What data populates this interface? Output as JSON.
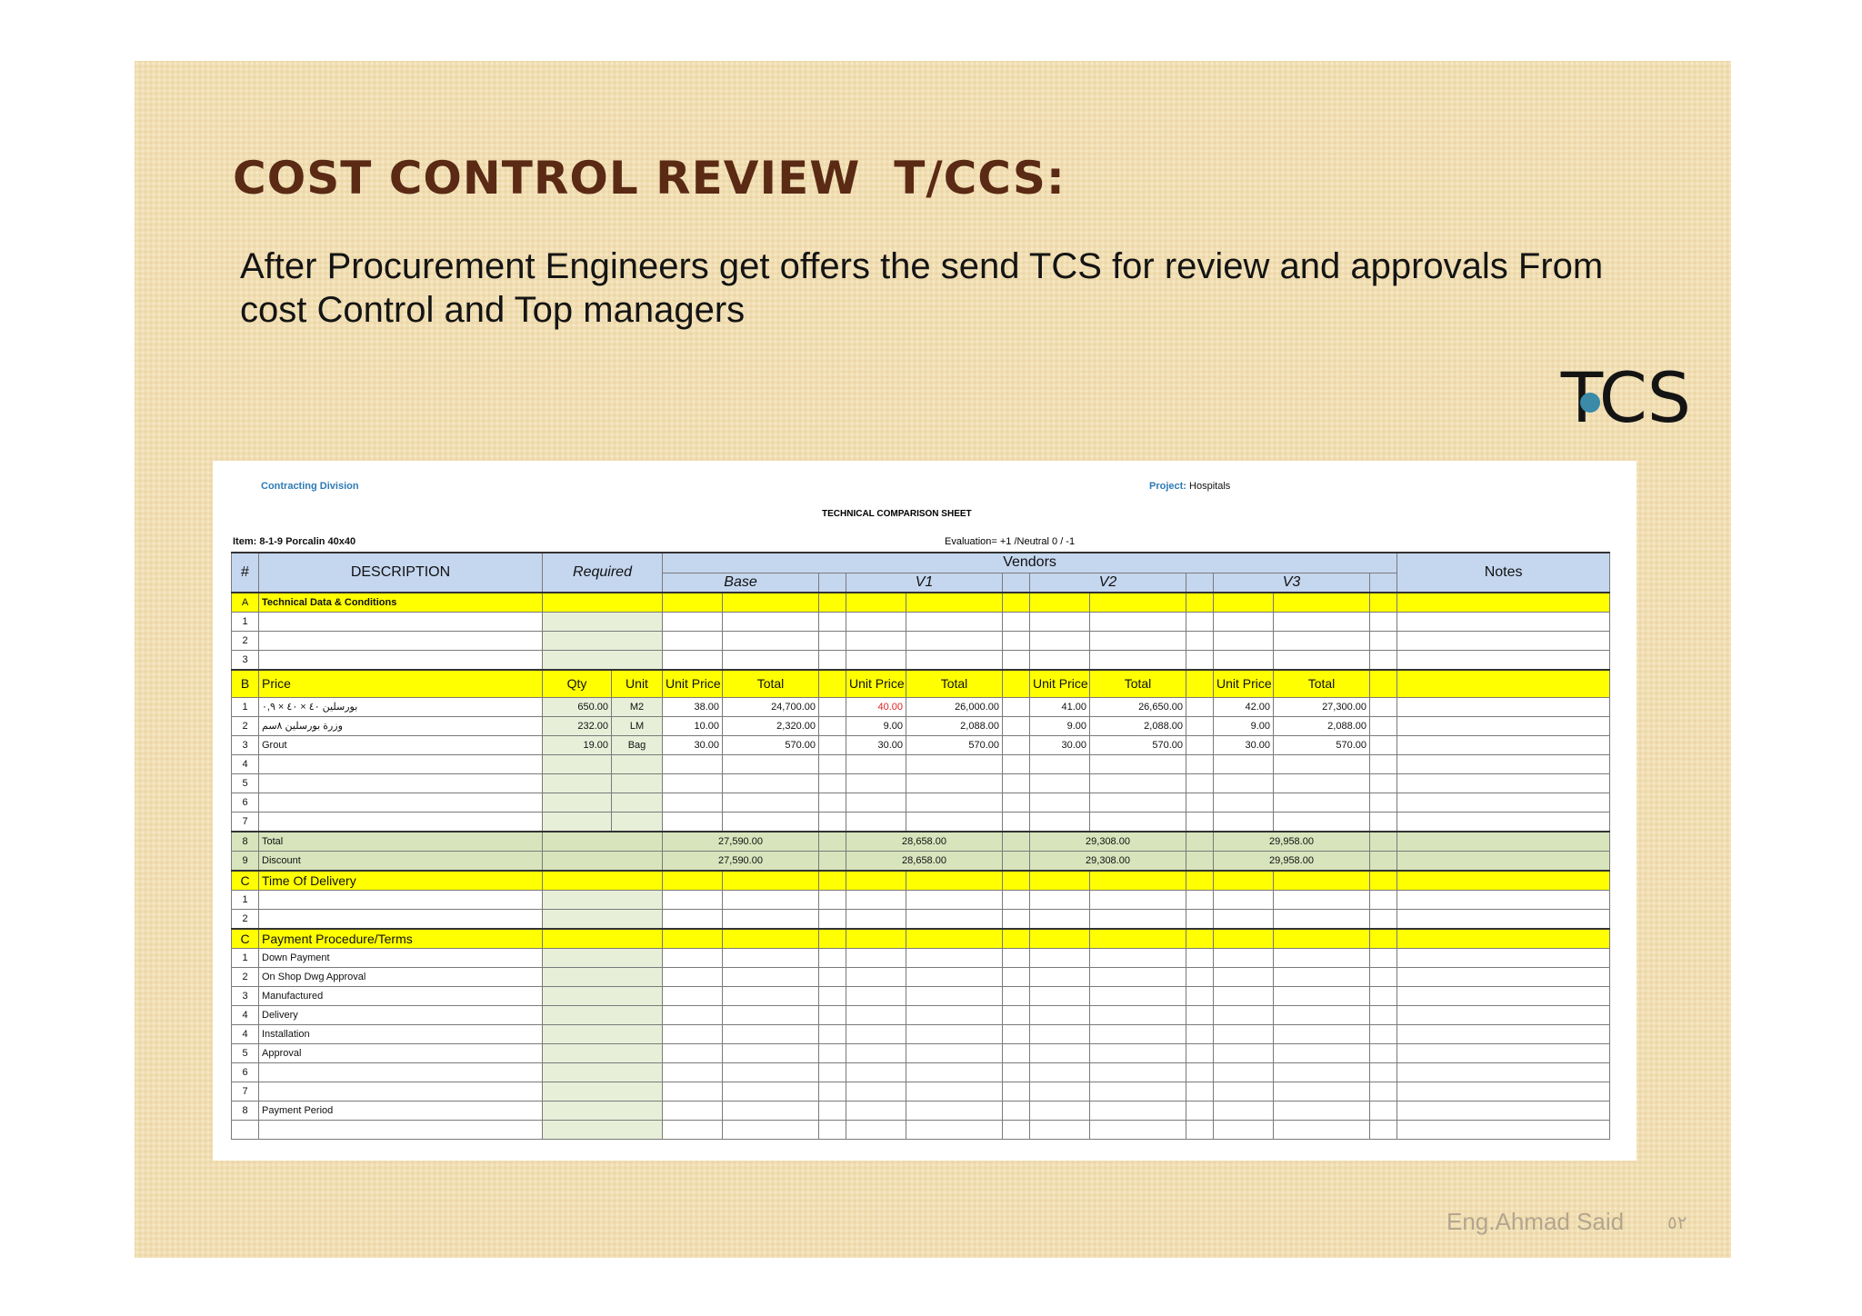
{
  "slide": {
    "title": "COST CONTROL REVIEW  T/CCS:",
    "subtitle": "After Procurement Engineers get offers the send TCS for review and approvals From cost  Control and Top managers",
    "bullet_label": "TCS"
  },
  "sheet": {
    "division_label": "Contracting Division",
    "project_label": "Project:",
    "project_value": "Hospitals",
    "sheet_title": "TECHNICAL COMPARISON SHEET",
    "item_label": "Item:",
    "item_value": "8-1-9 Porcalin 40x40",
    "evaluation": "Evaluation= +1 /Neutral 0 / -1",
    "headers": {
      "num": "#",
      "description": "DESCRIPTION",
      "required": "Required",
      "vendors": "Vendors",
      "notes": "Notes",
      "base": "Base",
      "v1": "V1",
      "v2": "V2",
      "v3": "V3"
    },
    "section_a": {
      "letter": "A",
      "label": "Technical Data & Conditions",
      "rows": [
        "1",
        "2",
        "3"
      ]
    },
    "section_b": {
      "letter": "B",
      "label": "Price",
      "qty": "Qty",
      "unit": "Unit",
      "unit_price": "Unit Price",
      "total": "Total",
      "rows": [
        {
          "n": "1",
          "desc": "بورسلين ٤٠ × ٤٠ × ٠,٩",
          "qty": "650.00",
          "unit": "M2",
          "base_up": "38.00",
          "base_total": "24,700.00",
          "v1_up": "40.00",
          "v1_total": "26,000.00",
          "v2_up": "41.00",
          "v2_total": "26,650.00",
          "v3_up": "42.00",
          "v3_total": "27,300.00"
        },
        {
          "n": "2",
          "desc": "وزرة بورسلين ٨سم",
          "qty": "232.00",
          "unit": "LM",
          "base_up": "10.00",
          "base_total": "2,320.00",
          "v1_up": "9.00",
          "v1_total": "2,088.00",
          "v2_up": "9.00",
          "v2_total": "2,088.00",
          "v3_up": "9.00",
          "v3_total": "2,088.00"
        },
        {
          "n": "3",
          "desc": "Grout",
          "qty": "19.00",
          "unit": "Bag",
          "base_up": "30.00",
          "base_total": "570.00",
          "v1_up": "30.00",
          "v1_total": "570.00",
          "v2_up": "30.00",
          "v2_total": "570.00",
          "v3_up": "30.00",
          "v3_total": "570.00"
        },
        {
          "n": "4",
          "desc": "",
          "qty": "",
          "unit": "",
          "base_up": "",
          "base_total": "",
          "v1_up": "",
          "v1_total": "",
          "v2_up": "",
          "v2_total": "",
          "v3_up": "",
          "v3_total": ""
        },
        {
          "n": "5",
          "desc": "",
          "qty": "",
          "unit": "",
          "base_up": "",
          "base_total": "",
          "v1_up": "",
          "v1_total": "",
          "v2_up": "",
          "v2_total": "",
          "v3_up": "",
          "v3_total": ""
        },
        {
          "n": "6",
          "desc": "",
          "qty": "",
          "unit": "",
          "base_up": "",
          "base_total": "",
          "v1_up": "",
          "v1_total": "",
          "v2_up": "",
          "v2_total": "",
          "v3_up": "",
          "v3_total": ""
        },
        {
          "n": "7",
          "desc": "",
          "qty": "",
          "unit": "",
          "base_up": "",
          "base_total": "",
          "v1_up": "",
          "v1_total": "",
          "v2_up": "",
          "v2_total": "",
          "v3_up": "",
          "v3_total": ""
        }
      ],
      "summary": [
        {
          "n": "8",
          "label": "Total",
          "base": "27,590.00",
          "v1": "28,658.00",
          "v2": "29,308.00",
          "v3": "29,958.00"
        },
        {
          "n": "9",
          "label": "Discount",
          "base": "27,590.00",
          "v1": "28,658.00",
          "v2": "29,308.00",
          "v3": "29,958.00"
        }
      ]
    },
    "section_c_delivery": {
      "letter": "C",
      "label": "Time Of Delivery",
      "rows": [
        "1",
        "2"
      ]
    },
    "section_c_payment": {
      "letter": "C",
      "label": "Payment Procedure/Terms",
      "rows": [
        {
          "n": "1",
          "label": "Down Payment"
        },
        {
          "n": "2",
          "label": "On Shop Dwg Approval"
        },
        {
          "n": "3",
          "label": "Manufactured"
        },
        {
          "n": "4",
          "label": "Delivery"
        },
        {
          "n": "4",
          "label": "Installation"
        },
        {
          "n": "5",
          "label": "Approval"
        },
        {
          "n": "6",
          "label": ""
        },
        {
          "n": "7",
          "label": ""
        },
        {
          "n": "8",
          "label": "Payment Period"
        },
        {
          "n": "",
          "label": ""
        }
      ]
    }
  },
  "footer": {
    "author": "Eng.Ahmad Said",
    "page": "٥٢"
  }
}
